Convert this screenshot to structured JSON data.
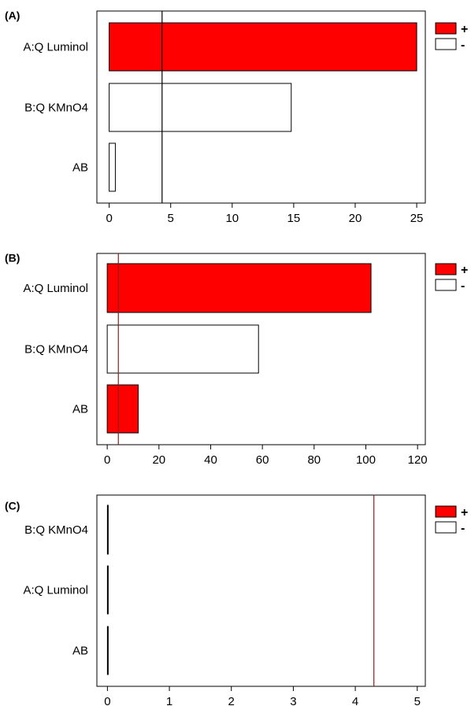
{
  "colors": {
    "positive": "#ff0000",
    "negative": "#ffffff",
    "frame": "#000000",
    "refline_a": "#000000",
    "refline_b": "#8b2020",
    "refline_c": "#8b2020"
  },
  "chart_data": [
    {
      "type": "bar",
      "orientation": "horizontal",
      "panel_label": "(A)",
      "categories": [
        "A:Q Luminol",
        "B:Q KMnO4",
        "AB"
      ],
      "values": [
        25.0,
        14.8,
        0.5
      ],
      "signs": [
        "+",
        "-",
        "-"
      ],
      "xlim": [
        -1,
        25.7
      ],
      "xticks": [
        0,
        5,
        10,
        15,
        20,
        25
      ],
      "reference_line": 4.3,
      "legend": {
        "position": "top-right",
        "entries": [
          {
            "sign": "+",
            "label": "+"
          },
          {
            "sign": "-",
            "label": "-"
          }
        ]
      },
      "grid": false
    },
    {
      "type": "bar",
      "orientation": "horizontal",
      "panel_label": "(B)",
      "categories": [
        "A:Q Luminol",
        "B:Q KMnO4",
        "AB"
      ],
      "values": [
        102.0,
        58.5,
        12.0
      ],
      "signs": [
        "+",
        "-",
        "+"
      ],
      "xlim": [
        -4,
        123
      ],
      "xticks": [
        0,
        20,
        40,
        60,
        80,
        100,
        120
      ],
      "reference_line": 4.3,
      "legend": {
        "position": "top-right",
        "entries": [
          {
            "sign": "+",
            "label": "+"
          },
          {
            "sign": "-",
            "label": "-"
          }
        ]
      },
      "grid": false
    },
    {
      "type": "bar",
      "orientation": "horizontal",
      "panel_label": "(C)",
      "categories": [
        "B:Q KMnO4",
        "A:Q Luminol",
        "AB"
      ],
      "values": [
        0.003,
        0.002,
        0.002
      ],
      "signs": [
        "-",
        "-",
        "-"
      ],
      "xlim": [
        -0.17,
        5.13
      ],
      "xticks": [
        0,
        1,
        2,
        3,
        4,
        5
      ],
      "reference_line": 4.3,
      "legend": {
        "position": "top-right",
        "entries": [
          {
            "sign": "+",
            "label": "+"
          },
          {
            "sign": "-",
            "label": "-"
          }
        ]
      },
      "grid": false
    }
  ]
}
